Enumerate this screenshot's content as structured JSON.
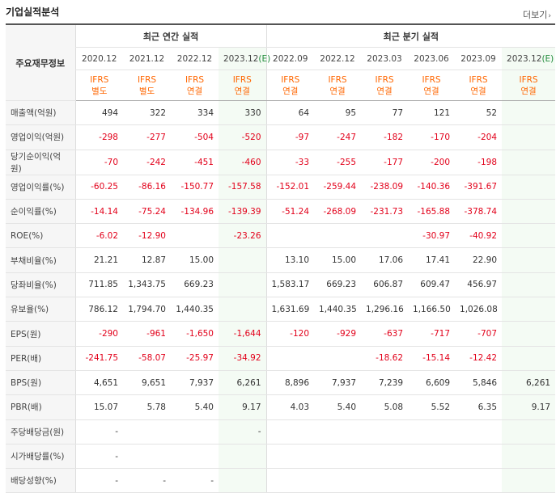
{
  "section": {
    "title": "기업실적분석",
    "more_label": "더보기"
  },
  "header": {
    "corner_label": "주요재무정보",
    "annual_label": "최근 연간 실적",
    "quarter_label": "최근 분기 실적",
    "periods": [
      {
        "label": "2020.12",
        "est": ""
      },
      {
        "label": "2021.12",
        "est": ""
      },
      {
        "label": "2022.12",
        "est": ""
      },
      {
        "label": "2023.12",
        "est": "(E)"
      },
      {
        "label": "2022.09",
        "est": ""
      },
      {
        "label": "2022.12",
        "est": ""
      },
      {
        "label": "2023.03",
        "est": ""
      },
      {
        "label": "2023.06",
        "est": ""
      },
      {
        "label": "2023.09",
        "est": ""
      },
      {
        "label": "2023.12",
        "est": "(E)"
      }
    ],
    "standards": [
      {
        "top": "IFRS",
        "bottom": "별도"
      },
      {
        "top": "IFRS",
        "bottom": "별도"
      },
      {
        "top": "IFRS",
        "bottom": "연결"
      },
      {
        "top": "IFRS",
        "bottom": "연결"
      },
      {
        "top": "IFRS",
        "bottom": "연결"
      },
      {
        "top": "IFRS",
        "bottom": "연결"
      },
      {
        "top": "IFRS",
        "bottom": "연결"
      },
      {
        "top": "IFRS",
        "bottom": "연결"
      },
      {
        "top": "IFRS",
        "bottom": "연결"
      },
      {
        "top": "IFRS",
        "bottom": "연결"
      }
    ]
  },
  "rows": [
    {
      "label": "매출액(억원)",
      "values": [
        "494",
        "322",
        "334",
        "330",
        "64",
        "95",
        "77",
        "121",
        "52",
        ""
      ]
    },
    {
      "label": "영업이익(억원)",
      "values": [
        "-298",
        "-277",
        "-504",
        "-520",
        "-97",
        "-247",
        "-182",
        "-170",
        "-204",
        ""
      ]
    },
    {
      "label": "당기순이익(억원)",
      "values": [
        "-70",
        "-242",
        "-451",
        "-460",
        "-33",
        "-255",
        "-177",
        "-200",
        "-198",
        ""
      ]
    },
    {
      "label": "영업이익률(%)",
      "values": [
        "-60.25",
        "-86.16",
        "-150.77",
        "-157.58",
        "-152.01",
        "-259.44",
        "-238.09",
        "-140.36",
        "-391.67",
        ""
      ]
    },
    {
      "label": "순이익률(%)",
      "values": [
        "-14.14",
        "-75.24",
        "-134.96",
        "-139.39",
        "-51.24",
        "-268.09",
        "-231.73",
        "-165.88",
        "-378.74",
        ""
      ]
    },
    {
      "label": "ROE(%)",
      "values": [
        "-6.02",
        "-12.90",
        "",
        "-23.26",
        "",
        "",
        "",
        "-30.97",
        "-40.92",
        ""
      ]
    },
    {
      "label": "부채비율(%)",
      "values": [
        "21.21",
        "12.87",
        "15.00",
        "",
        "13.10",
        "15.00",
        "17.06",
        "17.41",
        "22.90",
        ""
      ]
    },
    {
      "label": "당좌비율(%)",
      "values": [
        "711.85",
        "1,343.75",
        "669.23",
        "",
        "1,583.17",
        "669.23",
        "606.87",
        "609.47",
        "456.97",
        ""
      ]
    },
    {
      "label": "유보율(%)",
      "values": [
        "786.12",
        "1,794.70",
        "1,440.35",
        "",
        "1,631.69",
        "1,440.35",
        "1,296.16",
        "1,166.50",
        "1,026.08",
        ""
      ]
    },
    {
      "label": "EPS(원)",
      "values": [
        "-290",
        "-961",
        "-1,650",
        "-1,644",
        "-120",
        "-929",
        "-637",
        "-717",
        "-707",
        ""
      ]
    },
    {
      "label": "PER(배)",
      "values": [
        "-241.75",
        "-58.07",
        "-25.97",
        "-34.92",
        "",
        "",
        "-18.62",
        "-15.14",
        "-12.42",
        ""
      ]
    },
    {
      "label": "BPS(원)",
      "values": [
        "4,651",
        "9,651",
        "7,937",
        "6,261",
        "8,896",
        "7,937",
        "7,239",
        "6,609",
        "5,846",
        "6,261"
      ]
    },
    {
      "label": "PBR(배)",
      "values": [
        "15.07",
        "5.78",
        "5.40",
        "9.17",
        "4.03",
        "5.40",
        "5.08",
        "5.52",
        "6.35",
        "9.17"
      ]
    },
    {
      "label": "주당배당금(원)",
      "values": [
        "-",
        "",
        "",
        "-",
        "",
        "",
        "",
        "",
        "",
        ""
      ]
    },
    {
      "label": "시가배당률(%)",
      "values": [
        "-",
        "",
        "",
        "",
        "",
        "",
        "",
        "",
        "",
        ""
      ]
    },
    {
      "label": "배당성향(%)",
      "values": [
        "-",
        "-",
        "-",
        "",
        "",
        "",
        "",
        "",
        "",
        ""
      ]
    }
  ]
}
